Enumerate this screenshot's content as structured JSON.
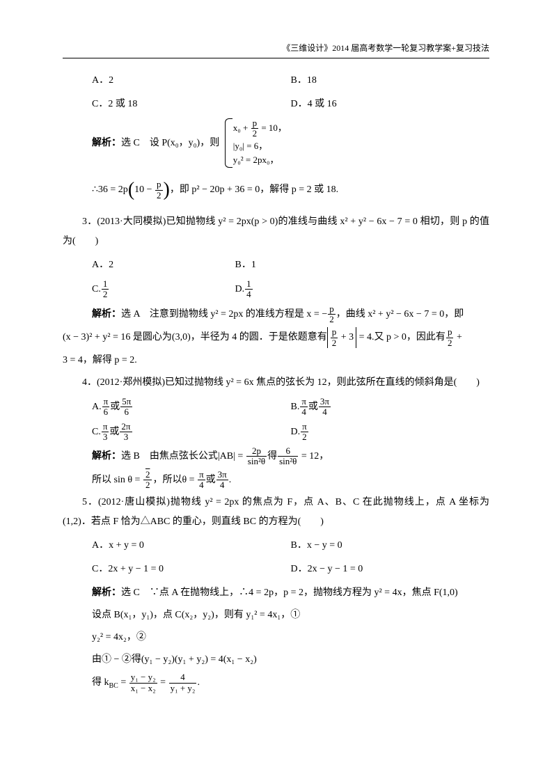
{
  "header": "《三维设计》2014 届高考数学一轮复习教学案+复习技法",
  "q_prev": {
    "optA": "A．2",
    "optB": "B．18",
    "optC": "C．2 或 18",
    "optD": "D．4 或 16",
    "sol_label": "解析：",
    "sol_choice": "选 C",
    "sol_text": "　设 P(x₀，y₀)，则",
    "brace1": "x₀ + ",
    "brace1b": " = 10，",
    "brace2": "|y₀| = 6，",
    "brace3": "y₀² = 2px₀，",
    "line2a": "∴36 = 2p",
    "line2b": "10 − ",
    "line2c": "，即 p² − 20p + 36 = 0，解得 p = 2 或 18."
  },
  "q3": {
    "stem": "3．(2013·大同模拟)已知抛物线 y² = 2px(p > 0)的准线与曲线 x² + y² − 6x − 7 = 0 相切，则 p 的值为(　　)",
    "optA": "A．2",
    "optB": "B．1",
    "optC_pre": "C.",
    "optD_pre": "D.",
    "sol_label": "解析：",
    "sol_choice": "选 A",
    "sol1a": "　注意到抛物线 y² = 2px 的准线方程是 x = −",
    "sol1b": "，曲线 x² + y² − 6x − 7 = 0，即",
    "sol2a": "(x − 3)² + y² = 16 是圆心为(3,0)，半径为 4 的圆．于是依题意有",
    "sol2b": " + 3",
    "sol2c": " = 4.又 p > 0，因此有",
    "sol2d": " + ",
    "sol3": "3 = 4，解得 p = 2."
  },
  "q4": {
    "stem": "4．(2012·郑州模拟)已知过抛物线 y² = 6x 焦点的弦长为 12，则此弦所在直线的倾斜角是(　　)",
    "optA_pre": "A.",
    "optA_mid": "或",
    "optB_pre": "B.",
    "optB_mid": "或",
    "optC_pre": "C.",
    "optC_mid": "或",
    "optD_pre": "D.",
    "sol_label": "解析：",
    "sol_choice": "选 B",
    "sol1a": "　由焦点弦长公式|AB| = ",
    "sol1b": "得",
    "sol1c": " = 12，",
    "sol2a": "所以 sin θ = ",
    "sol2b": "，所以θ = ",
    "sol2c": "或",
    "sol2d": "."
  },
  "q5": {
    "stem1": "5．(2012·唐山模拟)抛物线 y² = 2px 的焦点为 F，点 A、B、C 在此抛物线上，点 A 坐标为(1,2)．若点 F 恰为△ABC 的重心，则直线 BC 的方程为(　　)",
    "optA": "A．x + y = 0",
    "optB": "B．x − y = 0",
    "optC": "C．2x + y − 1 = 0",
    "optD": "D．2x − y − 1 = 0",
    "sol_label": "解析：",
    "sol_choice": "选 C",
    "sol1": "　∵点 A 在抛物线上，∴4 = 2p，p = 2，抛物线方程为 y² = 4x，焦点 F(1,0)",
    "sol2": "设点 B(x₁，y₁)，点 C(x₂，y₂)，则有 y₁² = 4x₁，①",
    "sol3": "y₂² = 4x₂，②",
    "sol4": "由① − ②得(y₁ − y₂)(y₁ + y₂) = 4(x₁ − x₂)",
    "sol5a": "得 k",
    "sol5a_sub": "BC",
    "sol5b": " = ",
    "sol5c": " = ",
    "sol5d": "."
  },
  "fracs": {
    "p2_num": "p",
    "p2_den": "2",
    "half_num": "1",
    "half_den": "2",
    "quarter_num": "1",
    "quarter_den": "4",
    "pi6_num": "π",
    "pi6_den": "6",
    "5pi6_num": "5π",
    "5pi6_den": "6",
    "pi4_num": "π",
    "pi4_den": "4",
    "3pi4_num": "3π",
    "3pi4_den": "4",
    "pi3_num": "π",
    "pi3_den": "3",
    "2pi3_num": "2π",
    "2pi3_den": "3",
    "pi2_num": "π",
    "pi2_den": "2",
    "2p_num": "2p",
    "s2_den": "sin²θ",
    "six_num": "6",
    "sqrt2_num": "√2",
    "two_den": "2",
    "y12_num": "y₁ − y₂",
    "x12_den": "x₁ − x₂",
    "four_num": "4",
    "y1y2_den": "y₁ + y₂"
  }
}
